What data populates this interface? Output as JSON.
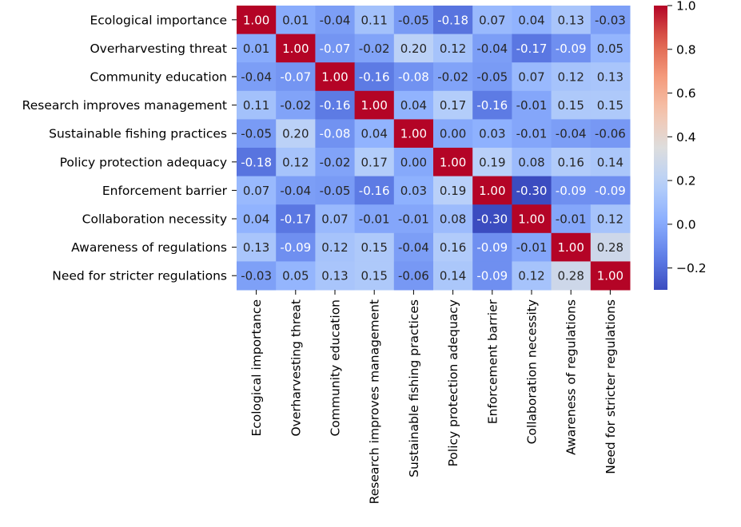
{
  "chart_data": {
    "type": "heatmap",
    "title": "",
    "labels": [
      "Ecological importance",
      "Overharvesting threat",
      "Community education",
      "Research improves management",
      "Sustainable fishing practices",
      "Policy protection adequacy",
      "Enforcement barrier",
      "Collaboration necessity",
      "Awareness of regulations",
      "Need for stricter regulations"
    ],
    "matrix": [
      [
        1.0,
        0.01,
        -0.04,
        0.11,
        -0.05,
        -0.18,
        0.07,
        0.04,
        0.13,
        -0.03
      ],
      [
        0.01,
        1.0,
        -0.07,
        -0.02,
        0.2,
        0.12,
        -0.04,
        -0.17,
        -0.09,
        0.05
      ],
      [
        -0.04,
        -0.07,
        1.0,
        -0.16,
        -0.08,
        -0.02,
        -0.05,
        0.07,
        0.12,
        0.13
      ],
      [
        0.11,
        -0.02,
        -0.16,
        1.0,
        0.04,
        0.17,
        -0.16,
        -0.01,
        0.15,
        0.15
      ],
      [
        -0.05,
        0.2,
        -0.08,
        0.04,
        1.0,
        0.0,
        0.03,
        -0.01,
        -0.04,
        -0.06
      ],
      [
        -0.18,
        0.12,
        -0.02,
        0.17,
        0.0,
        1.0,
        0.19,
        0.08,
        0.16,
        0.14
      ],
      [
        0.07,
        -0.04,
        -0.05,
        -0.16,
        0.03,
        0.19,
        1.0,
        -0.3,
        -0.09,
        -0.09
      ],
      [
        0.04,
        -0.17,
        0.07,
        -0.01,
        -0.01,
        0.08,
        -0.3,
        1.0,
        -0.01,
        0.12
      ],
      [
        0.13,
        -0.09,
        0.12,
        0.15,
        -0.04,
        0.16,
        -0.09,
        -0.01,
        1.0,
        0.28
      ],
      [
        -0.03,
        0.05,
        0.13,
        0.15,
        -0.06,
        0.14,
        -0.09,
        0.12,
        0.28,
        1.0
      ]
    ],
    "value_format": "0.00",
    "colormap": "coolwarm",
    "vmin": -0.3,
    "vmax": 1.0,
    "colorbar_ticks": [
      -0.2,
      0.0,
      0.2,
      0.4,
      0.6,
      0.8,
      1.0
    ],
    "colorbar_tick_labels": [
      "−0.2",
      "0.0",
      "0.2",
      "0.4",
      "0.6",
      "0.8",
      "1.0"
    ]
  }
}
